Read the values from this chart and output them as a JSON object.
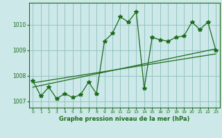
{
  "xlabel": "Graphe pression niveau de la mer (hPa)",
  "x": [
    0,
    1,
    2,
    3,
    4,
    5,
    6,
    7,
    8,
    9,
    10,
    11,
    12,
    13,
    14,
    15,
    16,
    17,
    18,
    19,
    20,
    21,
    22,
    23
  ],
  "y": [
    1007.8,
    1007.2,
    1007.55,
    1007.1,
    1007.3,
    1007.15,
    1007.25,
    1007.75,
    1007.3,
    1009.35,
    1009.65,
    1010.3,
    1010.1,
    1010.5,
    1007.5,
    1009.5,
    1009.4,
    1009.35,
    1009.5,
    1009.55,
    1010.1,
    1009.8,
    1010.1,
    1009.0
  ],
  "trend1_x": [
    0,
    23
  ],
  "trend1_y": [
    1007.55,
    1009.05
  ],
  "trend2_x": [
    0,
    23
  ],
  "trend2_y": [
    1007.72,
    1008.85
  ],
  "ylim": [
    1006.75,
    1010.85
  ],
  "xlim": [
    -0.5,
    23.5
  ],
  "yticks": [
    1007,
    1008,
    1009,
    1010
  ],
  "xticks": [
    0,
    1,
    2,
    3,
    4,
    5,
    6,
    7,
    8,
    9,
    10,
    11,
    12,
    13,
    14,
    15,
    16,
    17,
    18,
    19,
    20,
    21,
    22,
    23
  ],
  "line_color": "#1a6b1a",
  "bg_color": "#cce8e8",
  "grid_color": "#8fbfbf",
  "marker": "*",
  "marker_size": 4,
  "linewidth": 0.9
}
